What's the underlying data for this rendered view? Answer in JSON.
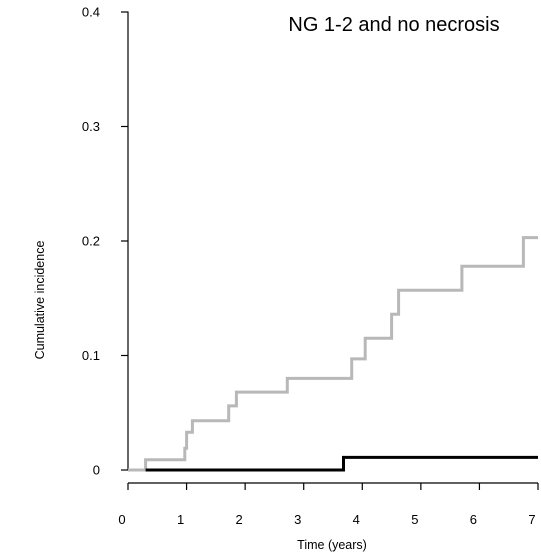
{
  "chart_data": {
    "type": "line",
    "title": "NG 1-2 and no necrosis",
    "xlabel": "Time (years)",
    "ylabel": "Cumulative incidence",
    "xlim": [
      0,
      7
    ],
    "ylim": [
      0,
      0.4
    ],
    "x_ticks": [
      "0",
      "1",
      "2",
      "3",
      "4",
      "5",
      "6",
      "7"
    ],
    "y_ticks": [
      "0",
      "0.1",
      "0.2",
      "0.3",
      "0.4"
    ],
    "grid": false,
    "legend": "none",
    "series": [
      {
        "color": "#b8b8b8",
        "step": true,
        "points": [
          [
            0,
            0
          ],
          [
            0.3,
            0.009
          ],
          [
            0.97,
            0.019
          ],
          [
            1.0,
            0.033
          ],
          [
            1.1,
            0.043
          ],
          [
            1.72,
            0.056
          ],
          [
            1.85,
            0.068
          ],
          [
            2.72,
            0.08
          ],
          [
            3.82,
            0.097
          ],
          [
            4.05,
            0.115
          ],
          [
            4.5,
            0.136
          ],
          [
            4.62,
            0.157
          ],
          [
            5.7,
            0.178
          ],
          [
            6.75,
            0.203
          ],
          [
            7.0,
            0.203
          ]
        ]
      },
      {
        "color": "#000000",
        "step": true,
        "points": [
          [
            0.3,
            0
          ],
          [
            3.68,
            0
          ],
          [
            3.68,
            0.011
          ],
          [
            7.0,
            0.011
          ]
        ]
      }
    ]
  }
}
